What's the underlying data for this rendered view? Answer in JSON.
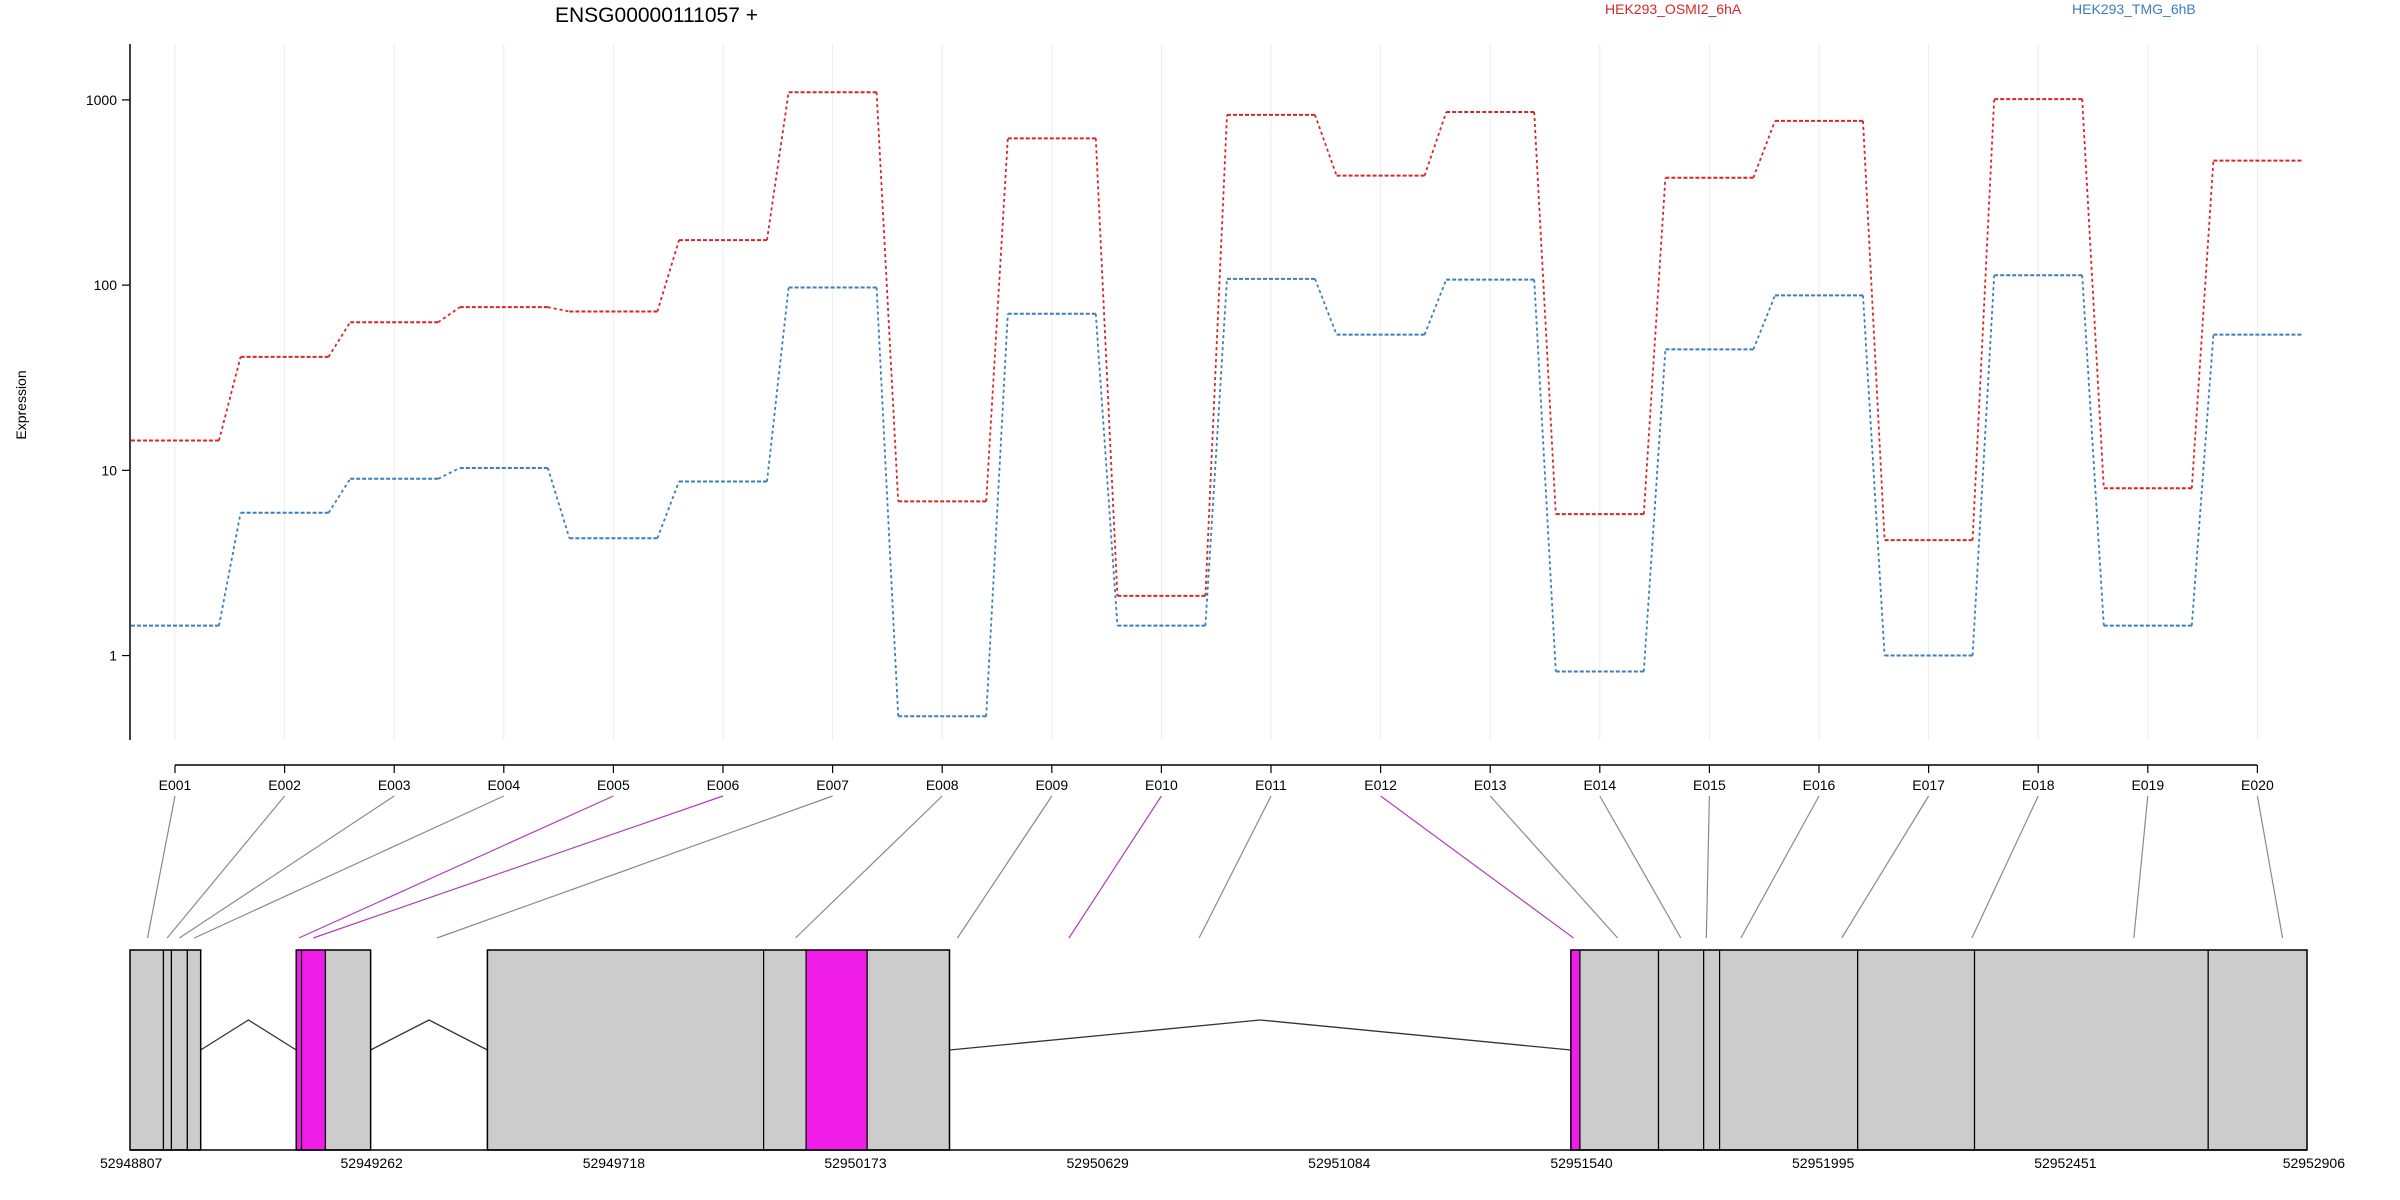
{
  "chart_data": {
    "type": "line",
    "title": "ENSG00000111057 +",
    "ylabel": "Expression",
    "yscale": "log",
    "ylim": [
      0.35,
      1450
    ],
    "yticks": [
      1,
      10,
      100,
      1000
    ],
    "ytick_labels": [
      "1",
      "10",
      "100",
      "1000"
    ],
    "grid": "vertical, light",
    "legend_placement": "top-right",
    "categories": [
      "E001",
      "E002",
      "E003",
      "E004",
      "E005",
      "E006",
      "E007",
      "E008",
      "E009",
      "E010",
      "E011",
      "E012",
      "E013",
      "E014",
      "E015",
      "E016",
      "E017",
      "E018",
      "E019",
      "E020"
    ],
    "series": [
      {
        "name": "HEK293_OSMI2_6hA",
        "color": "#d62728",
        "line_style": "dotted",
        "values": [
          14.5,
          41,
          63,
          76,
          72,
          175,
          1100,
          6.8,
          620,
          2.1,
          830,
          390,
          860,
          5.8,
          380,
          770,
          4.2,
          1010,
          8.0,
          470
        ]
      },
      {
        "name": "HEK293_TMG_6hB",
        "color": "#3a7ebf",
        "line_style": "dotted",
        "values": [
          1.45,
          5.9,
          9.0,
          10.3,
          4.3,
          8.7,
          97,
          0.47,
          70,
          1.45,
          108,
          54,
          107,
          0.82,
          45,
          88,
          1.0,
          113,
          1.45,
          54
        ]
      }
    ],
    "gene_model": {
      "genomic_coordinates": [
        "52948807",
        "52949262",
        "52949718",
        "52950173",
        "52950629",
        "52951084",
        "52951540",
        "52951995",
        "52952451",
        "52952906"
      ],
      "coordinate_range": [
        52948807,
        52952906
      ],
      "exon_color": "#cccccc",
      "highlight_color": "#f01de8",
      "blocks": [
        {
          "start": 52948807,
          "end": 52948940
        },
        {
          "start": 52949120,
          "end": 52949260
        },
        {
          "start": 52949480,
          "end": 52950350
        },
        {
          "start": 52951520,
          "end": 52952906
        }
      ],
      "exon_segments": [
        {
          "start": 52948807,
          "end": 52948870,
          "highlight": false
        },
        {
          "start": 52948870,
          "end": 52948885,
          "highlight": false
        },
        {
          "start": 52948885,
          "end": 52948915,
          "highlight": false
        },
        {
          "start": 52948915,
          "end": 52948940,
          "highlight": false
        },
        {
          "start": 52949120,
          "end": 52949130,
          "highlight": true
        },
        {
          "start": 52949130,
          "end": 52949175,
          "highlight": true
        },
        {
          "start": 52949175,
          "end": 52949260,
          "highlight": false
        },
        {
          "start": 52949480,
          "end": 52950000,
          "highlight": false
        },
        {
          "start": 52950000,
          "end": 52950080,
          "highlight": false
        },
        {
          "start": 52950080,
          "end": 52950195,
          "highlight": true
        },
        {
          "start": 52950195,
          "end": 52950350,
          "highlight": false
        },
        {
          "start": 52951520,
          "end": 52951537,
          "highlight": true
        },
        {
          "start": 52951537,
          "end": 52951685,
          "highlight": false
        },
        {
          "start": 52951685,
          "end": 52951770,
          "highlight": false
        },
        {
          "start": 52951770,
          "end": 52951800,
          "highlight": false
        },
        {
          "start": 52951800,
          "end": 52952060,
          "highlight": false
        },
        {
          "start": 52952060,
          "end": 52952280,
          "highlight": false
        },
        {
          "start": 52952280,
          "end": 52952720,
          "highlight": false
        },
        {
          "start": 52952720,
          "end": 52952906,
          "highlight": false
        }
      ],
      "introns": [
        {
          "start": 52948940,
          "end": 52949120
        },
        {
          "start": 52949260,
          "end": 52949480
        },
        {
          "start": 52950350,
          "end": 52951520
        }
      ],
      "exon_map": [
        {
          "exon": "E001",
          "position": 52948840,
          "highlight": false
        },
        {
          "exon": "E002",
          "position": 52948877,
          "highlight": false
        },
        {
          "exon": "E003",
          "position": 52948900,
          "highlight": false
        },
        {
          "exon": "E004",
          "position": 52948928,
          "highlight": false
        },
        {
          "exon": "E005",
          "position": 52949125,
          "highlight": true
        },
        {
          "exon": "E006",
          "position": 52949152,
          "highlight": true
        },
        {
          "exon": "E007",
          "position": 52949385,
          "highlight": false
        },
        {
          "exon": "E008",
          "position": 52950060,
          "highlight": false
        },
        {
          "exon": "E009",
          "position": 52950365,
          "highlight": false
        },
        {
          "exon": "E010",
          "position": 52950575,
          "highlight": true
        },
        {
          "exon": "E011",
          "position": 52950820,
          "highlight": false
        },
        {
          "exon": "E012",
          "position": 52951525,
          "highlight": true
        },
        {
          "exon": "E013",
          "position": 52951608,
          "highlight": false
        },
        {
          "exon": "E014",
          "position": 52951727,
          "highlight": false
        },
        {
          "exon": "E015",
          "position": 52951775,
          "highlight": false
        },
        {
          "exon": "E016",
          "position": 52951840,
          "highlight": false
        },
        {
          "exon": "E017",
          "position": 52952030,
          "highlight": false
        },
        {
          "exon": "E018",
          "position": 52952275,
          "highlight": false
        },
        {
          "exon": "E019",
          "position": 52952580,
          "highlight": false
        },
        {
          "exon": "E020",
          "position": 52952860,
          "highlight": false
        }
      ]
    }
  }
}
